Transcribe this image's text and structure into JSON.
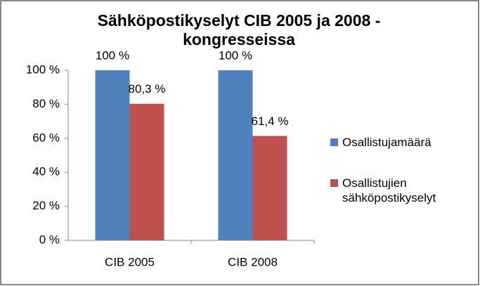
{
  "chart_data": {
    "type": "bar",
    "title": "Sähköpostikyselyt CIB 2005 ja 2008 -kongresseissa",
    "categories": [
      "CIB 2005",
      "CIB 2008"
    ],
    "series": [
      {
        "name": "Osallistujamäärä",
        "color": "#4f81bd",
        "values": [
          100,
          100
        ],
        "value_labels": [
          "100 %",
          "100 %"
        ]
      },
      {
        "name": "Osallistujien sähköpostikyselyt",
        "color": "#c0504d",
        "values": [
          80.3,
          61.4
        ],
        "value_labels": [
          "80,3 %",
          "61,4 %"
        ]
      }
    ],
    "ylim": [
      0,
      100
    ],
    "yticks": [
      {
        "value": 0,
        "label": "0 %"
      },
      {
        "value": 20,
        "label": "20 %"
      },
      {
        "value": 40,
        "label": "40 %"
      },
      {
        "value": 60,
        "label": "60 %"
      },
      {
        "value": 80,
        "label": "80 %"
      },
      {
        "value": 100,
        "label": "100 %"
      }
    ],
    "grid": false,
    "legend": "right"
  }
}
